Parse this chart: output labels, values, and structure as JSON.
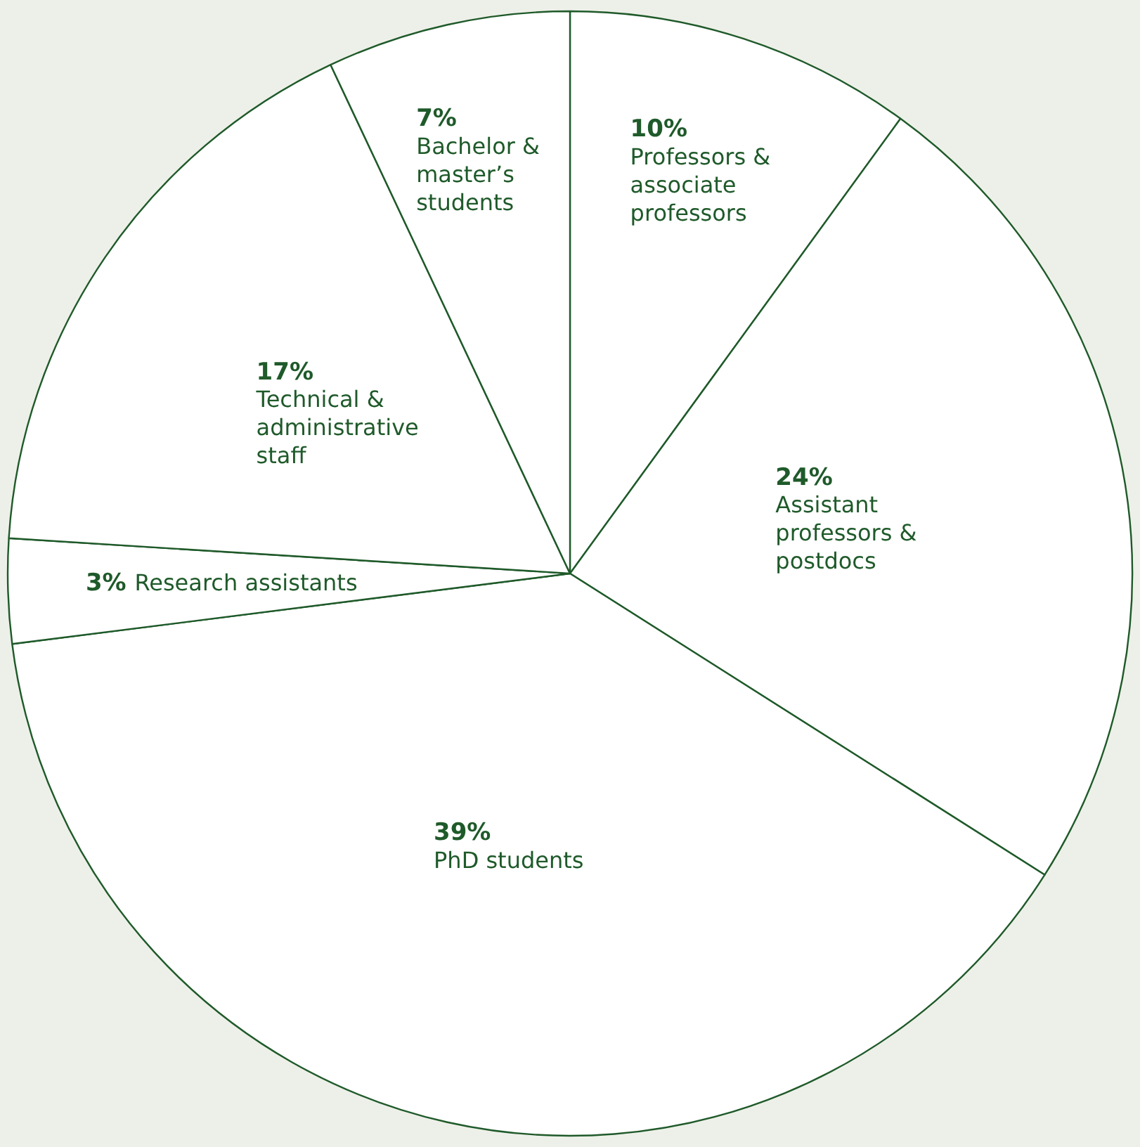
{
  "chart_data": {
    "type": "pie",
    "categories": [
      "Professors & associate professors",
      "Assistant professors & postdocs",
      "PhD students",
      "Research assistants",
      "Technical & administrative staff",
      "Bachelor & master’s students"
    ],
    "values": [
      10,
      24,
      39,
      3,
      17,
      7
    ],
    "value_labels": [
      "10%",
      "24%",
      "39%",
      "3%",
      "17%",
      "7%"
    ],
    "colors": [
      "#ffffff",
      "#ffffff",
      "#ffffff",
      "#ffffff",
      "#ffffff",
      "#ffffff"
    ],
    "legend": false
  }
}
